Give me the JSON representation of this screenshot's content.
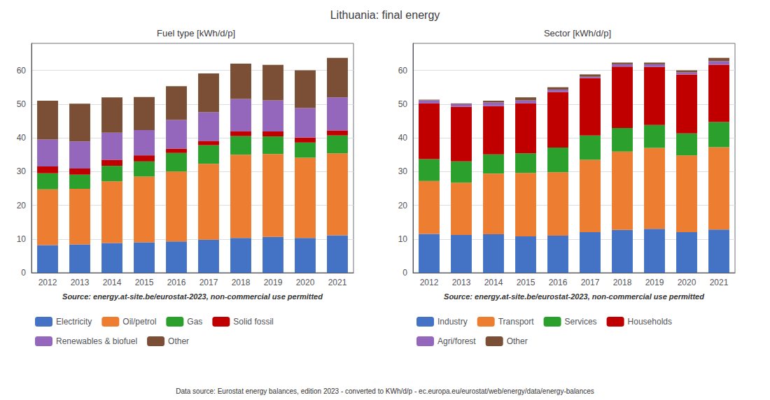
{
  "title": "Lithuania: final energy",
  "annotations": [
    "Data source: Eurostat energy balances, edition 2023 - converted to KWh/d/p - ec.europa.eu/eurostat/web/energy/data/energy-balances"
  ],
  "chart_data": [
    {
      "type": "bar",
      "title": "Fuel type [kWh/d/p]",
      "annotations": [
        "Source: energy.at-site.be/eurostat-2023, non-commercial use permitted"
      ],
      "categories": [
        "2012",
        "2013",
        "2014",
        "2015",
        "2016",
        "2017",
        "2018",
        "2019",
        "2020",
        "2021"
      ],
      "series": [
        {
          "name": "Electricity",
          "color": "#4472c4",
          "values": [
            8.2,
            8.4,
            8.8,
            9.0,
            9.3,
            9.8,
            10.3,
            10.6,
            10.3,
            11.1
          ]
        },
        {
          "name": "Oil/petrol",
          "color": "#ed7d31",
          "values": [
            16.5,
            16.5,
            18.3,
            19.5,
            20.7,
            22.5,
            24.7,
            24.6,
            23.8,
            24.3
          ]
        },
        {
          "name": "Gas",
          "color": "#2ca02c",
          "values": [
            4.8,
            4.2,
            4.6,
            4.5,
            5.5,
            5.5,
            5.5,
            5.2,
            4.5,
            5.3
          ]
        },
        {
          "name": "Solid fossil",
          "color": "#c00000",
          "values": [
            2.0,
            1.8,
            1.8,
            1.8,
            1.3,
            1.3,
            1.5,
            1.5,
            1.5,
            1.5
          ]
        },
        {
          "name": "Renewables & biofuel",
          "color": "#9467bd",
          "values": [
            8.0,
            8.0,
            8.0,
            7.5,
            8.5,
            8.5,
            9.5,
            9.2,
            8.7,
            9.8
          ]
        },
        {
          "name": "Other",
          "color": "#7b4f35",
          "values": [
            11.5,
            11.2,
            10.5,
            9.8,
            10.0,
            11.5,
            10.5,
            10.5,
            11.2,
            11.7
          ]
        }
      ],
      "stacked": true,
      "ylim": [
        0,
        68
      ],
      "yticks": [
        0,
        10,
        20,
        30,
        40,
        50,
        60
      ],
      "grid": true,
      "legend": "bottom"
    },
    {
      "type": "bar",
      "title": "Sector [kWh/d/p]",
      "annotations": [
        "Source: energy.at-site.be/eurostat-2023, non-commercial use permitted"
      ],
      "categories": [
        "2012",
        "2013",
        "2014",
        "2015",
        "2016",
        "2017",
        "2018",
        "2019",
        "2020",
        "2021"
      ],
      "series": [
        {
          "name": "Industry",
          "color": "#4472c4",
          "values": [
            11.5,
            11.2,
            11.4,
            10.8,
            11.0,
            12.0,
            12.7,
            13.0,
            12.0,
            12.8
          ]
        },
        {
          "name": "Transport",
          "color": "#ed7d31",
          "values": [
            15.7,
            15.5,
            18.0,
            18.8,
            18.8,
            21.5,
            23.2,
            24.0,
            22.8,
            24.4
          ]
        },
        {
          "name": "Services",
          "color": "#2ca02c",
          "values": [
            6.5,
            6.3,
            5.7,
            5.8,
            7.3,
            7.2,
            7.0,
            6.8,
            6.5,
            7.5
          ]
        },
        {
          "name": "Households",
          "color": "#c00000",
          "values": [
            16.5,
            16.2,
            14.3,
            14.8,
            16.5,
            17.0,
            18.2,
            17.2,
            17.5,
            17.0
          ]
        },
        {
          "name": "Agri/forest",
          "color": "#9467bd",
          "values": [
            0.9,
            0.8,
            1.1,
            0.9,
            0.7,
            0.4,
            0.7,
            0.8,
            0.6,
            1.0
          ]
        },
        {
          "name": "Other",
          "color": "#7b4f35",
          "values": [
            0.2,
            0.2,
            0.5,
            0.9,
            0.7,
            0.7,
            0.5,
            0.5,
            0.6,
            1.0
          ]
        }
      ],
      "stacked": true,
      "ylim": [
        0,
        68
      ],
      "yticks": [
        0,
        10,
        20,
        30,
        40,
        50,
        60
      ],
      "grid": true,
      "legend": "bottom"
    }
  ]
}
